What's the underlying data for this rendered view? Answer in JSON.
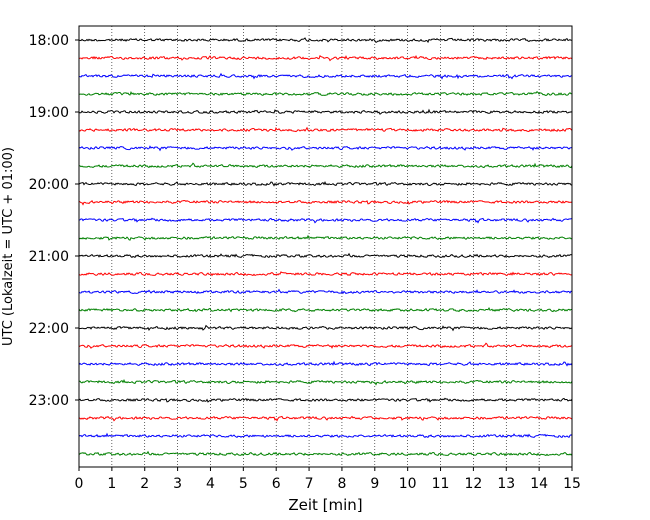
{
  "chart_data": {
    "type": "line",
    "title": "",
    "xlabel": "Zeit  [min]",
    "ylabel": "UTC (Lokalzeit = UTC + 01:00)",
    "xlim": [
      0,
      15
    ],
    "x_ticks": [
      "0",
      "1",
      "2",
      "3",
      "4",
      "5",
      "6",
      "7",
      "8",
      "9",
      "10",
      "11",
      "12",
      "13",
      "14",
      "15"
    ],
    "y_tick_labels": [
      "18:00",
      "19:00",
      "20:00",
      "21:00",
      "22:00",
      "23:00"
    ],
    "start_time": "18:00",
    "row_interval_min": 15,
    "row_count": 24,
    "row_colors": [
      "#000000",
      "#ff0000",
      "#0000ff",
      "#008000"
    ],
    "grid": "x-dotted"
  }
}
